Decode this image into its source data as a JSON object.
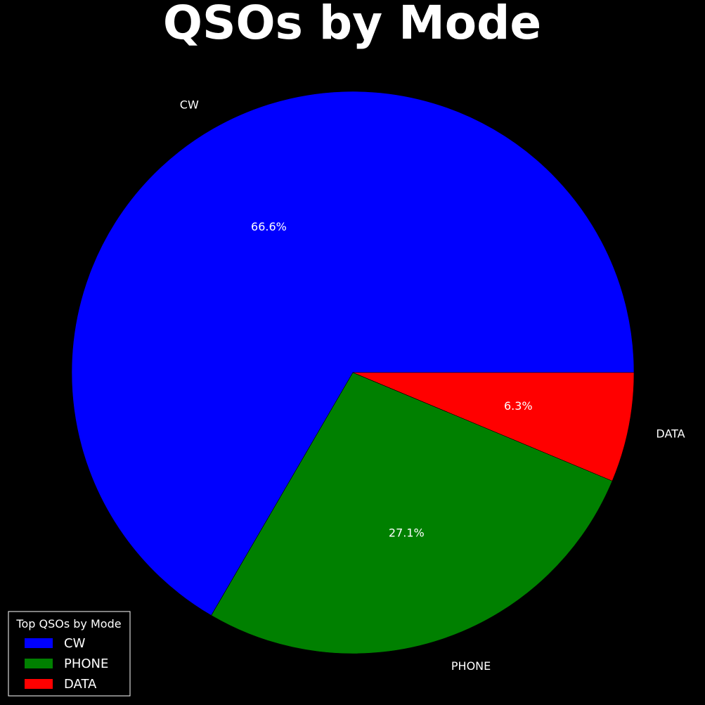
{
  "chart_data": {
    "type": "pie",
    "title": "QSOs by Mode",
    "slices": [
      {
        "label": "CW",
        "value": 66.6,
        "percent_label": "66.6%",
        "color": "#0000ff"
      },
      {
        "label": "PHONE",
        "value": 27.1,
        "percent_label": "27.1%",
        "color": "#008000"
      },
      {
        "label": "DATA",
        "value": 6.3,
        "percent_label": "6.3%",
        "color": "#ff0000"
      }
    ],
    "start_angle_deg": 0,
    "direction": "counterclockwise",
    "legend": {
      "title": "Top QSOs by Mode",
      "placement": "lower-left",
      "entries": [
        "CW",
        "PHONE",
        "DATA"
      ]
    },
    "background_color": "#000000",
    "text_color": "#ffffff"
  }
}
